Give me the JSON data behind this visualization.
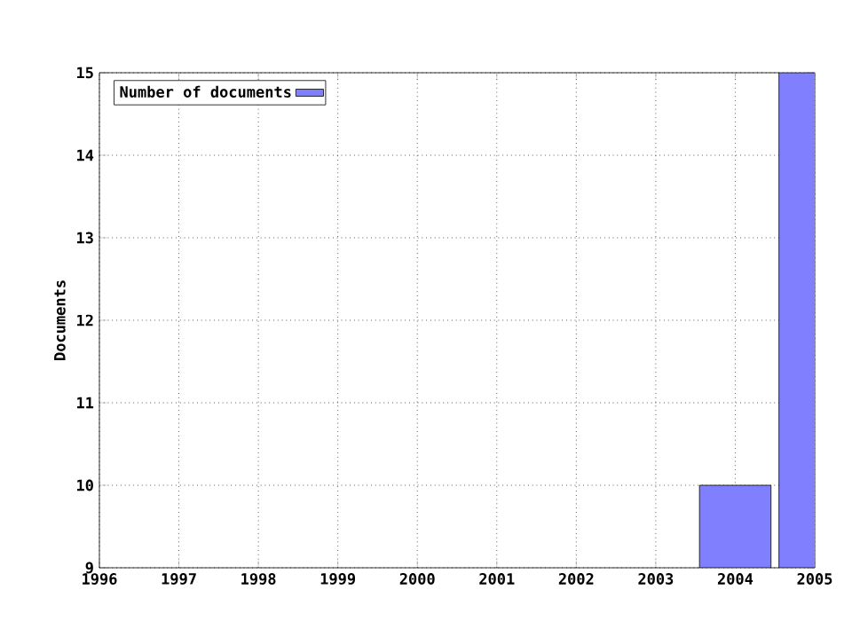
{
  "chart_data": {
    "type": "bar",
    "ylabel": "Documents",
    "x": [
      2004,
      2005
    ],
    "series": [
      {
        "name": "Number of documents",
        "color": "#8080ff",
        "values": [
          10,
          15
        ]
      }
    ],
    "xlim": [
      1996,
      2005
    ],
    "ylim": [
      9,
      15
    ],
    "xticks": [
      1996,
      1997,
      1998,
      1999,
      2000,
      2001,
      2002,
      2003,
      2004,
      2005
    ],
    "yticks": [
      9,
      10,
      11,
      12,
      13,
      14,
      15
    ],
    "grid": true,
    "legend": "top left"
  }
}
